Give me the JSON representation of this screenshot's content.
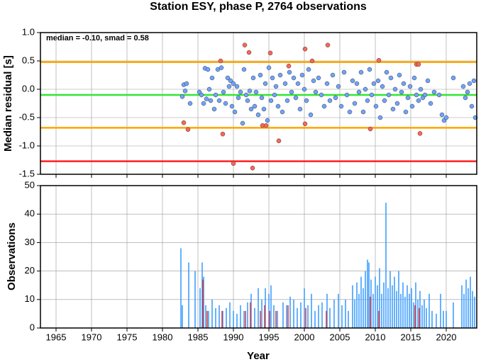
{
  "chart_data": [
    {
      "type": "scatter",
      "title": "Station ESY, phase P, 2764 observations",
      "annotation": "median = -0.10, smad = 0.58",
      "ylabel": "Median residual [s]",
      "xlim": [
        1962.8,
        2024.3
      ],
      "xticks": [
        1965,
        1970,
        1975,
        1980,
        1985,
        1990,
        1995,
        2000,
        2005,
        2010,
        2015,
        2020
      ],
      "ylim": [
        -1.5,
        1
      ],
      "yticks": [
        {
          "value": 1,
          "label": "1.0"
        },
        0.5,
        {
          "value": 0,
          "label": "0.0"
        },
        -0.5,
        {
          "value": -1,
          "label": "-1.0"
        },
        -1.5
      ],
      "grid": true,
      "hlines": [
        {
          "value": 0.48,
          "color": "#ffa500"
        },
        {
          "value": -0.68,
          "color": "#ffa500"
        },
        {
          "value": -0.1,
          "color": "#33e633"
        },
        {
          "value": -1.27,
          "color": "#ff2020"
        }
      ],
      "series": [
        {
          "color": "#6fa4ff",
          "x": [
            1982.8,
            1983.0,
            1983.2,
            1983.4,
            1983.9,
            1985.2,
            1985.5,
            1985.8,
            1986.0,
            1986.2,
            1986.4,
            1986.6,
            1986.8,
            1987.0,
            1987.3,
            1987.5,
            1987.8,
            1988.0,
            1988.3,
            1988.6,
            1988.9,
            1989.2,
            1989.4,
            1989.6,
            1989.8,
            1990.0,
            1990.2,
            1990.5,
            1990.7,
            1991.0,
            1991.3,
            1991.5,
            1991.8,
            1992.0,
            1992.3,
            1992.5,
            1992.8,
            1993.0,
            1993.2,
            1993.5,
            1993.8,
            1994.0,
            1994.3,
            1994.5,
            1994.8,
            1995.0,
            1995.3,
            1995.5,
            1995.8,
            1996.0,
            1996.3,
            1996.6,
            1996.9,
            1997.3,
            1997.6,
            1997.9,
            1998.2,
            1998.5,
            1998.8,
            1999.1,
            1999.4,
            1999.7,
            2000.0,
            2000.3,
            2000.6,
            2000.9,
            2001.3,
            2001.6,
            2002.0,
            2002.4,
            2002.8,
            2003.2,
            2003.6,
            2004.0,
            2004.4,
            2004.8,
            2005.2,
            2005.6,
            2006.0,
            2006.4,
            2006.8,
            2007.1,
            2007.4,
            2007.7,
            2008.0,
            2008.3,
            2008.6,
            2008.9,
            2009.2,
            2009.5,
            2009.8,
            2010.1,
            2010.4,
            2010.7,
            2011.0,
            2011.3,
            2011.6,
            2011.9,
            2012.2,
            2012.5,
            2012.8,
            2013.1,
            2013.4,
            2013.7,
            2014.0,
            2014.3,
            2014.6,
            2014.9,
            2015.2,
            2015.5,
            2015.8,
            2016.1,
            2016.4,
            2016.7,
            2017.0,
            2017.4,
            2017.8,
            2018.3,
            2019.0,
            2019.4,
            2019.7,
            2020.0,
            2021.0,
            2022.4,
            2022.7,
            2023.0,
            2023.3,
            2023.6,
            2023.9,
            2024.1
          ],
          "values": [
            -0.13,
            0.08,
            -0.03,
            0.1,
            -0.25,
            -0.05,
            -0.1,
            -0.25,
            0.37,
            -0.17,
            0.35,
            0.0,
            -0.2,
            0.2,
            -0.35,
            -0.1,
            0.35,
            -0.2,
            0.38,
            -0.05,
            -0.25,
            0.2,
            0.05,
            0.15,
            -0.3,
            0.1,
            -0.4,
            0.05,
            -0.15,
            -0.05,
            -0.6,
            0.35,
            -0.1,
            -0.2,
            -0.03,
            -0.35,
            0.2,
            -0.3,
            -0.05,
            -0.45,
            0.25,
            -0.15,
            -0.35,
            0.1,
            -0.55,
            0.38,
            -0.2,
            0.2,
            -0.1,
            0.05,
            -0.3,
            0.25,
            -0.4,
            0.1,
            -0.2,
            0.3,
            -0.05,
            0.2,
            -0.15,
            0.1,
            -0.35,
            0.25,
            0.0,
            -0.2,
            0.35,
            -0.45,
            0.15,
            -0.05,
            0.2,
            -0.1,
            -0.3,
            0.1,
            -0.2,
            0.25,
            -0.15,
            0.05,
            -0.3,
            0.3,
            -0.1,
            -0.4,
            0.15,
            -0.25,
            0.1,
            -0.05,
            0.3,
            -0.4,
            0.0,
            -0.2,
            0.35,
            -0.1,
            0.1,
            -0.3,
            0.15,
            -0.5,
            0.05,
            -0.2,
            0.3,
            -0.1,
            0.2,
            -0.35,
            0.0,
            -0.25,
            0.25,
            -0.05,
            0.1,
            -0.4,
            -0.15,
            0.05,
            -0.3,
            0.2,
            -0.1,
            -0.2,
            0.0,
            -0.15,
            -0.1,
            0.15,
            -0.25,
            -0.05,
            -0.1,
            -0.45,
            -0.55,
            -0.5,
            0.2,
            0.05,
            -0.15,
            -0.05,
            0.1,
            -0.3,
            0.15,
            -0.5
          ]
        },
        {
          "color": "#ff6655",
          "x": [
            1983.0,
            1983.6,
            1988.2,
            1988.5,
            1990.0,
            1991.6,
            1992.2,
            1992.7,
            1994.1,
            1994.6,
            1995.2,
            1996.4,
            1997.8,
            2000.1,
            2000.1,
            2001.1,
            2003.3,
            2009.3,
            2010.5,
            2015.8,
            2016.1,
            2016.3
          ],
          "values": [
            -0.59,
            -0.71,
            0.5,
            -0.79,
            -1.31,
            0.78,
            0.65,
            -1.39,
            -0.64,
            -0.64,
            0.64,
            -0.91,
            0.41,
            0.71,
            -0.61,
            0.5,
            0.78,
            -0.7,
            0.51,
            0.44,
            0.44,
            -0.78
          ]
        }
      ]
    },
    {
      "type": "bar",
      "xlabel": "Year",
      "ylabel": "Observations",
      "xlim": [
        1962.8,
        2024.3
      ],
      "xticks": [
        1965,
        1970,
        1975,
        1980,
        1985,
        1990,
        1995,
        2000,
        2005,
        2010,
        2015,
        2020
      ],
      "ylim": [
        0,
        50
      ],
      "yticks": [
        0,
        10,
        20,
        30,
        40,
        50
      ],
      "grid": true,
      "series": [
        {
          "color": "#3399ff",
          "x": [
            1982.6,
            1982.8,
            1983.7,
            1984.6,
            1985.3,
            1985.6,
            1985.8,
            1986.1,
            1986.5,
            1987.0,
            1987.5,
            1988.0,
            1988.5,
            1989.0,
            1989.5,
            1990.0,
            1990.5,
            1991.0,
            1991.5,
            1992.0,
            1992.5,
            1993.0,
            1993.5,
            1994.0,
            1994.5,
            1995.0,
            1995.3,
            1995.7,
            1996.2,
            1997.0,
            1997.5,
            1998.0,
            1998.5,
            1999.0,
            1999.5,
            2000.0,
            2000.5,
            2001.0,
            2001.5,
            2002.0,
            2002.5,
            2003.2,
            2003.6,
            2004.2,
            2004.8,
            2005.3,
            2005.8,
            2006.2,
            2006.8,
            2007.1,
            2007.4,
            2007.7,
            2008.0,
            2008.3,
            2008.6,
            2008.9,
            2009.1,
            2009.4,
            2009.7,
            2010.0,
            2010.3,
            2010.6,
            2010.9,
            2011.2,
            2011.5,
            2011.8,
            2012.1,
            2012.4,
            2012.7,
            2013.0,
            2013.3,
            2013.6,
            2013.9,
            2014.2,
            2014.5,
            2014.8,
            2015.1,
            2015.4,
            2015.7,
            2016.0,
            2016.3,
            2016.6,
            2016.9,
            2017.2,
            2017.6,
            2018.0,
            2018.6,
            2019.2,
            2019.6,
            2020.0,
            2021.0,
            2022.2,
            2022.5,
            2022.8,
            2023.1,
            2023.4,
            2023.7,
            2024.0
          ],
          "values": [
            28,
            8,
            23,
            20,
            14,
            23,
            18,
            8,
            6,
            10,
            7,
            8,
            6,
            7,
            9,
            6,
            5,
            8,
            6,
            9,
            12,
            7,
            14,
            10,
            14,
            12,
            15,
            8,
            6,
            9,
            8,
            11,
            10,
            7,
            9,
            14,
            8,
            12,
            6,
            8,
            9,
            12,
            7,
            10,
            12,
            8,
            10,
            6,
            15,
            10,
            16,
            12,
            18,
            14,
            20,
            24,
            23,
            17,
            12,
            18,
            15,
            21,
            12,
            16,
            44,
            14,
            20,
            15,
            18,
            13,
            20,
            12,
            16,
            11,
            15,
            12,
            14,
            9,
            16,
            10,
            13,
            8,
            10,
            7,
            12,
            6,
            5,
            12,
            6,
            6,
            9,
            15,
            12,
            17,
            14,
            18,
            13,
            11
          ]
        },
        {
          "color": "#e03030",
          "x": [
            1985.7,
            1986.3,
            1988.4,
            1991.7,
            1992.4,
            1993.8,
            1994.4,
            1995.1,
            1996.0,
            1997.7,
            2000.2,
            2003.1,
            2009.3,
            2010.5,
            2015.6,
            2016.2
          ],
          "values": [
            17,
            6,
            6,
            6,
            9,
            6,
            8,
            6,
            6,
            8,
            7,
            6,
            11,
            6,
            8,
            7
          ]
        }
      ]
    }
  ]
}
